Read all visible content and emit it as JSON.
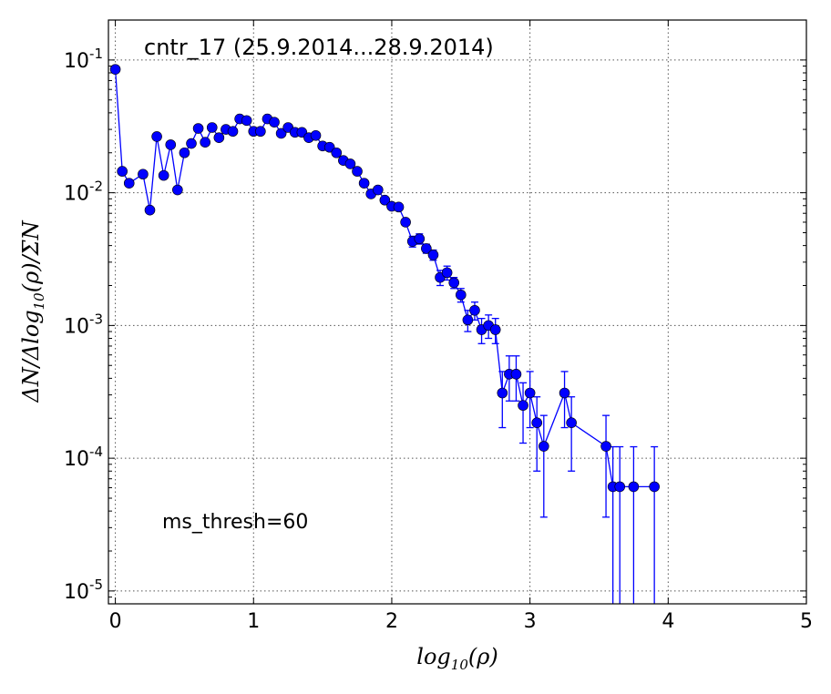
{
  "chart_data": {
    "type": "scatter",
    "title": "cntr_17 (25.9.2014...28.9.2014)",
    "annotation": "ms_thresh=60",
    "xlabel": "log10(ρ)",
    "ylabel": "ΔN/Δlog10(ρ)/ΣN",
    "xlim": [
      -0.05,
      5
    ],
    "ylim": [
      8e-06,
      0.2
    ],
    "yscale": "log",
    "grid": true,
    "x_ticks": [
      0,
      1,
      2,
      3,
      4,
      5
    ],
    "x_tick_labels": [
      "0",
      "1",
      "2",
      "3",
      "4",
      "5"
    ],
    "y_ticks": [
      1e-05,
      0.0001,
      0.001,
      0.01,
      0.1
    ],
    "y_tick_labels": [
      {
        "base": "10",
        "exp": "-5"
      },
      {
        "base": "10",
        "exp": "-4"
      },
      {
        "base": "10",
        "exp": "-3"
      },
      {
        "base": "10",
        "exp": "-2"
      },
      {
        "base": "10",
        "exp": "-1"
      }
    ],
    "colors": {
      "series": "#0000ff",
      "grid": "#555555"
    },
    "series": [
      {
        "marker": "circle",
        "line": true,
        "errorbars": true,
        "points": [
          {
            "x": 0.0,
            "y": 0.085,
            "err": 0
          },
          {
            "x": 0.05,
            "y": 0.0145,
            "err": 0
          },
          {
            "x": 0.1,
            "y": 0.0118,
            "err": 0
          },
          {
            "x": 0.2,
            "y": 0.0138,
            "err": 0
          },
          {
            "x": 0.25,
            "y": 0.0074,
            "err": 0
          },
          {
            "x": 0.3,
            "y": 0.0265,
            "err": 0
          },
          {
            "x": 0.35,
            "y": 0.0135,
            "err": 0
          },
          {
            "x": 0.4,
            "y": 0.023,
            "err": 0
          },
          {
            "x": 0.45,
            "y": 0.0105,
            "err": 0
          },
          {
            "x": 0.5,
            "y": 0.02,
            "err": 0
          },
          {
            "x": 0.55,
            "y": 0.0235,
            "err": 0
          },
          {
            "x": 0.6,
            "y": 0.0305,
            "err": 0
          },
          {
            "x": 0.65,
            "y": 0.024,
            "err": 0
          },
          {
            "x": 0.7,
            "y": 0.031,
            "err": 0
          },
          {
            "x": 0.75,
            "y": 0.026,
            "err": 0
          },
          {
            "x": 0.8,
            "y": 0.03,
            "err": 0
          },
          {
            "x": 0.85,
            "y": 0.029,
            "err": 0
          },
          {
            "x": 0.9,
            "y": 0.036,
            "err": 0
          },
          {
            "x": 0.95,
            "y": 0.035,
            "err": 0
          },
          {
            "x": 1.0,
            "y": 0.029,
            "err": 0
          },
          {
            "x": 1.05,
            "y": 0.029,
            "err": 0
          },
          {
            "x": 1.1,
            "y": 0.036,
            "err": 0
          },
          {
            "x": 1.15,
            "y": 0.034,
            "err": 0
          },
          {
            "x": 1.2,
            "y": 0.028,
            "err": 0
          },
          {
            "x": 1.25,
            "y": 0.031,
            "err": 0
          },
          {
            "x": 1.3,
            "y": 0.0285,
            "err": 0
          },
          {
            "x": 1.35,
            "y": 0.0285,
            "err": 0
          },
          {
            "x": 1.4,
            "y": 0.026,
            "err": 0
          },
          {
            "x": 1.45,
            "y": 0.027,
            "err": 0
          },
          {
            "x": 1.5,
            "y": 0.0225,
            "err": 0
          },
          {
            "x": 1.55,
            "y": 0.022,
            "err": 0
          },
          {
            "x": 1.6,
            "y": 0.02,
            "err": 0
          },
          {
            "x": 1.65,
            "y": 0.0175,
            "err": 0
          },
          {
            "x": 1.7,
            "y": 0.0165,
            "err": 0
          },
          {
            "x": 1.75,
            "y": 0.0145,
            "err": 0
          },
          {
            "x": 1.8,
            "y": 0.0118,
            "err": 0
          },
          {
            "x": 1.85,
            "y": 0.0098,
            "err": 0
          },
          {
            "x": 1.9,
            "y": 0.0105,
            "err": 0
          },
          {
            "x": 1.95,
            "y": 0.0088,
            "err": 0
          },
          {
            "x": 2.0,
            "y": 0.0079,
            "err": 0
          },
          {
            "x": 2.05,
            "y": 0.0078,
            "err": 0
          },
          {
            "x": 2.1,
            "y": 0.006,
            "err": 0.0003
          },
          {
            "x": 2.15,
            "y": 0.0043,
            "err": 0.0004
          },
          {
            "x": 2.2,
            "y": 0.0045,
            "err": 0.0004
          },
          {
            "x": 2.25,
            "y": 0.0038,
            "err": 0.0003
          },
          {
            "x": 2.3,
            "y": 0.0034,
            "err": 0.0003
          },
          {
            "x": 2.35,
            "y": 0.0023,
            "err": 0.0003
          },
          {
            "x": 2.4,
            "y": 0.0025,
            "err": 0.0003
          },
          {
            "x": 2.45,
            "y": 0.0021,
            "err": 0.0002
          },
          {
            "x": 2.5,
            "y": 0.0017,
            "err": 0.0002
          },
          {
            "x": 2.55,
            "y": 0.0011,
            "err": 0.0002
          },
          {
            "x": 2.6,
            "y": 0.0013,
            "err": 0.0002
          },
          {
            "x": 2.65,
            "y": 0.00093,
            "err": 0.0002
          },
          {
            "x": 2.7,
            "y": 0.001,
            "err": 0.0002
          },
          {
            "x": 2.75,
            "y": 0.00093,
            "err": 0.0002
          },
          {
            "x": 2.8,
            "y": 0.00031,
            "err": 0.00014
          },
          {
            "x": 2.85,
            "y": 0.00043,
            "err": 0.00016
          },
          {
            "x": 2.9,
            "y": 0.00043,
            "err": 0.00016
          },
          {
            "x": 2.95,
            "y": 0.00025,
            "err": 0.00012
          },
          {
            "x": 3.0,
            "y": 0.00031,
            "err": 0.00014
          },
          {
            "x": 3.05,
            "y": 0.000185,
            "err": 0.000105
          },
          {
            "x": 3.1,
            "y": 0.000123,
            "err": 8.7e-05
          },
          {
            "x": 3.25,
            "y": 0.00031,
            "err": 0.00014
          },
          {
            "x": 3.3,
            "y": 0.000185,
            "err": 0.000105
          },
          {
            "x": 3.55,
            "y": 0.000123,
            "err": 8.7e-05
          },
          {
            "x": 3.6,
            "y": 6.1e-05,
            "err": 6.1e-05
          },
          {
            "x": 3.65,
            "y": 6.1e-05,
            "err": 6.1e-05
          },
          {
            "x": 3.75,
            "y": 6.1e-05,
            "err": 6.1e-05
          },
          {
            "x": 3.9,
            "y": 6.1e-05,
            "err": 6.1e-05
          }
        ]
      }
    ]
  }
}
